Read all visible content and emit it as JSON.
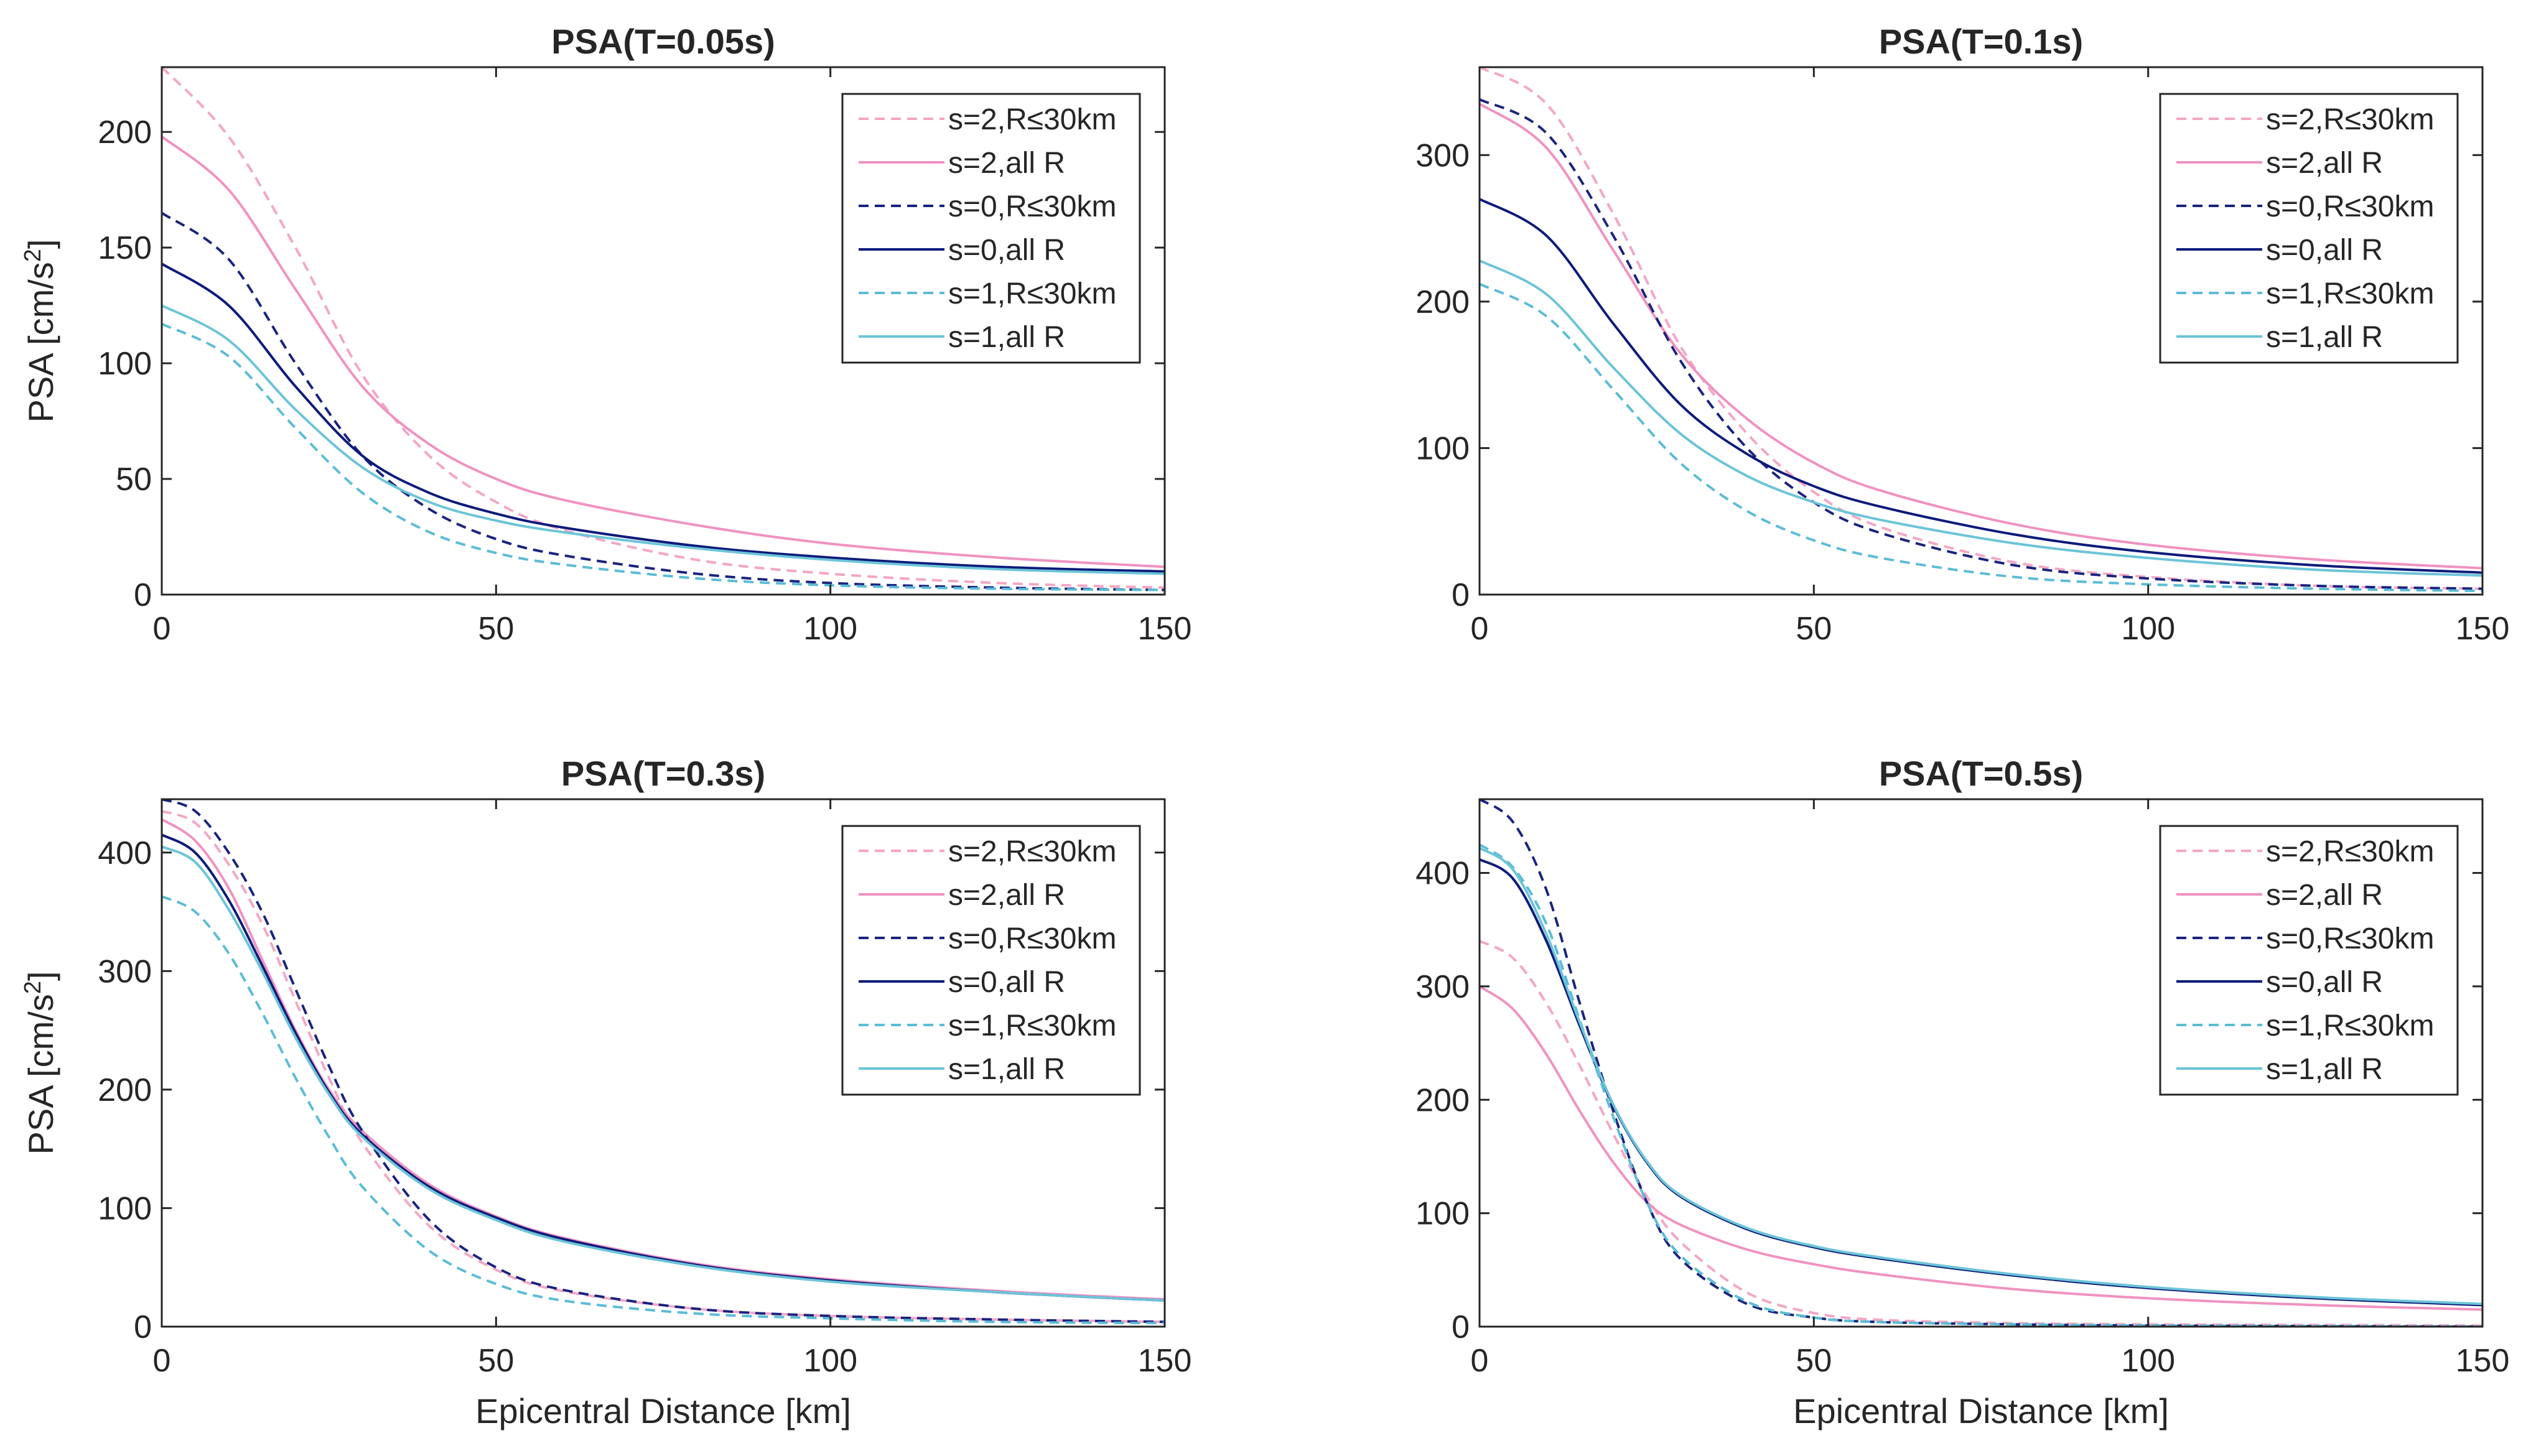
{
  "chart_data": [
    {
      "type": "line",
      "title": "PSA(T=0.05s)",
      "xlabel": "",
      "ylabel": "PSA [cm/s2]",
      "xlim": [
        0,
        150
      ],
      "ylim": [
        0,
        228
      ],
      "xticks": [
        0,
        50,
        100,
        150
      ],
      "yticks": [
        0,
        50,
        100,
        150,
        200
      ],
      "legend_position": "top-right",
      "series": [
        {
          "name": "s=2,R≤30km",
          "color": "#f4a6c5",
          "dashed": true,
          "x": [
            0,
            10,
            20,
            30,
            40,
            50,
            60,
            80,
            100,
            125,
            150
          ],
          "values": [
            228,
            198,
            150,
            95,
            60,
            40,
            28,
            15,
            9,
            5,
            3
          ]
        },
        {
          "name": "s=2,all R",
          "color": "#f092c0",
          "dashed": false,
          "x": [
            0,
            10,
            20,
            30,
            40,
            50,
            60,
            80,
            100,
            125,
            150
          ],
          "values": [
            198,
            175,
            132,
            90,
            65,
            50,
            41,
            30,
            22,
            16,
            12
          ]
        },
        {
          "name": "s=0,R≤30km",
          "color": "#1a237e",
          "dashed": true,
          "x": [
            0,
            10,
            20,
            30,
            40,
            50,
            60,
            80,
            100,
            125,
            150
          ],
          "values": [
            165,
            145,
            100,
            60,
            37,
            24,
            17,
            9,
            5,
            3,
            2
          ]
        },
        {
          "name": "s=0,all R",
          "color": "#0d1b7a",
          "dashed": false,
          "x": [
            0,
            10,
            20,
            30,
            40,
            50,
            60,
            80,
            100,
            125,
            150
          ],
          "values": [
            143,
            125,
            90,
            60,
            44,
            35,
            29,
            21,
            16,
            12,
            10
          ]
        },
        {
          "name": "s=1,R≤30km",
          "color": "#5bbcd6",
          "dashed": true,
          "x": [
            0,
            10,
            20,
            30,
            40,
            50,
            60,
            80,
            100,
            125,
            150
          ],
          "values": [
            117,
            103,
            72,
            44,
            27,
            18,
            13,
            7,
            4,
            2.5,
            2
          ]
        },
        {
          "name": "s=1,all R",
          "color": "#6cc4d8",
          "dashed": false,
          "x": [
            0,
            10,
            20,
            30,
            40,
            50,
            60,
            80,
            100,
            125,
            150
          ],
          "values": [
            125,
            110,
            80,
            55,
            40,
            32,
            27,
            20,
            15,
            11,
            9
          ]
        }
      ]
    },
    {
      "type": "line",
      "title": "PSA(T=0.1s)",
      "xlabel": "",
      "ylabel": "",
      "xlim": [
        0,
        150
      ],
      "ylim": [
        0,
        360
      ],
      "xticks": [
        0,
        50,
        100,
        150
      ],
      "yticks": [
        0,
        100,
        200,
        300
      ],
      "legend_position": "top-right",
      "series": [
        {
          "name": "s=2,R≤30km",
          "color": "#f4a6c5",
          "dashed": true,
          "x": [
            0,
            10,
            20,
            30,
            40,
            50,
            60,
            80,
            100,
            125,
            150
          ],
          "values": [
            360,
            335,
            260,
            170,
            110,
            70,
            46,
            22,
            12,
            6,
            4
          ]
        },
        {
          "name": "s=2,all R",
          "color": "#f092c0",
          "dashed": false,
          "x": [
            0,
            10,
            20,
            30,
            40,
            50,
            60,
            80,
            100,
            125,
            150
          ],
          "values": [
            335,
            305,
            235,
            165,
            120,
            90,
            71,
            48,
            34,
            24,
            18
          ]
        },
        {
          "name": "s=0,R≤30km",
          "color": "#1a237e",
          "dashed": true,
          "x": [
            0,
            10,
            20,
            30,
            40,
            50,
            60,
            80,
            100,
            125,
            150
          ],
          "values": [
            338,
            315,
            245,
            160,
            100,
            63,
            42,
            20,
            11,
            6,
            4
          ]
        },
        {
          "name": "s=0,all R",
          "color": "#0d1b7a",
          "dashed": false,
          "x": [
            0,
            10,
            20,
            30,
            40,
            50,
            60,
            80,
            100,
            125,
            150
          ],
          "values": [
            270,
            245,
            185,
            130,
            96,
            74,
            60,
            41,
            29,
            20,
            15
          ]
        },
        {
          "name": "s=1,R≤30km",
          "color": "#5bbcd6",
          "dashed": true,
          "x": [
            0,
            10,
            20,
            30,
            40,
            50,
            60,
            80,
            100,
            125,
            150
          ],
          "values": [
            212,
            190,
            140,
            90,
            57,
            37,
            25,
            12,
            7,
            4,
            2.5
          ]
        },
        {
          "name": "s=1,all R",
          "color": "#6cc4d8",
          "dashed": false,
          "x": [
            0,
            10,
            20,
            30,
            40,
            50,
            60,
            80,
            100,
            125,
            150
          ],
          "values": [
            228,
            205,
            155,
            110,
            81,
            63,
            51,
            35,
            25,
            17,
            13
          ]
        }
      ]
    },
    {
      "type": "line",
      "title": "PSA(T=0.3s)",
      "xlabel": "Epicentral Distance [km]",
      "ylabel": "PSA [cm/s2]",
      "xlim": [
        0,
        150
      ],
      "ylim": [
        0,
        445
      ],
      "xticks": [
        0,
        50,
        100,
        150
      ],
      "yticks": [
        0,
        100,
        200,
        300,
        400
      ],
      "legend_position": "top-right",
      "series": [
        {
          "name": "s=2,R≤30km",
          "color": "#f4a6c5",
          "dashed": true,
          "x": [
            0,
            5,
            10,
            15,
            20,
            25,
            30,
            40,
            50,
            60,
            80,
            100,
            125,
            150
          ],
          "values": [
            435,
            425,
            390,
            340,
            275,
            210,
            155,
            85,
            48,
            30,
            15,
            9,
            6,
            4
          ]
        },
        {
          "name": "s=2,all R",
          "color": "#f092c0",
          "dashed": false,
          "x": [
            0,
            5,
            10,
            15,
            20,
            25,
            30,
            40,
            50,
            60,
            80,
            100,
            125,
            150
          ],
          "values": [
            428,
            410,
            370,
            310,
            250,
            200,
            165,
            120,
            93,
            75,
            53,
            40,
            30,
            23
          ]
        },
        {
          "name": "s=0,R≤30km",
          "color": "#1a237e",
          "dashed": true,
          "x": [
            0,
            5,
            10,
            15,
            20,
            25,
            30,
            40,
            50,
            60,
            80,
            100,
            125,
            150
          ],
          "values": [
            445,
            435,
            400,
            350,
            285,
            220,
            165,
            90,
            50,
            31,
            15,
            9,
            6,
            4
          ]
        },
        {
          "name": "s=0,all R",
          "color": "#0d1b7a",
          "dashed": false,
          "x": [
            0,
            5,
            10,
            15,
            20,
            25,
            30,
            40,
            50,
            60,
            80,
            100,
            125,
            150
          ],
          "values": [
            415,
            400,
            360,
            305,
            248,
            198,
            162,
            118,
            92,
            74,
            52,
            39,
            29,
            22
          ]
        },
        {
          "name": "s=1,R≤30km",
          "color": "#5bbcd6",
          "dashed": true,
          "x": [
            0,
            5,
            10,
            15,
            20,
            25,
            30,
            40,
            50,
            60,
            80,
            100,
            125,
            150
          ],
          "values": [
            363,
            350,
            315,
            265,
            210,
            160,
            118,
            64,
            36,
            22,
            11,
            7,
            4,
            3
          ]
        },
        {
          "name": "s=1,all R",
          "color": "#6cc4d8",
          "dashed": false,
          "x": [
            0,
            5,
            10,
            15,
            20,
            25,
            30,
            40,
            50,
            60,
            80,
            100,
            125,
            150
          ],
          "values": [
            405,
            392,
            352,
            300,
            244,
            196,
            160,
            116,
            90,
            72,
            51,
            38,
            29,
            22
          ]
        }
      ]
    },
    {
      "type": "line",
      "title": "PSA(T=0.5s)",
      "xlabel": "Epicentral Distance [km]",
      "ylabel": "",
      "xlim": [
        0,
        150
      ],
      "ylim": [
        0,
        465
      ],
      "xticks": [
        0,
        50,
        100,
        150
      ],
      "yticks": [
        0,
        100,
        200,
        300,
        400
      ],
      "legend_position": "top-right",
      "series": [
        {
          "name": "s=2,R≤30km",
          "color": "#f4a6c5",
          "dashed": true,
          "x": [
            0,
            5,
            10,
            15,
            20,
            25,
            30,
            40,
            50,
            60,
            80,
            100,
            125,
            150
          ],
          "values": [
            340,
            325,
            285,
            230,
            170,
            115,
            75,
            30,
            12,
            6,
            3,
            2,
            1.5,
            1
          ]
        },
        {
          "name": "s=2,all R",
          "color": "#f092c0",
          "dashed": false,
          "x": [
            0,
            5,
            10,
            15,
            20,
            25,
            30,
            40,
            50,
            60,
            80,
            100,
            125,
            150
          ],
          "values": [
            300,
            280,
            240,
            190,
            145,
            110,
            90,
            68,
            55,
            46,
            33,
            25,
            19,
            15
          ]
        },
        {
          "name": "s=0,R≤30km",
          "color": "#1a237e",
          "dashed": true,
          "x": [
            0,
            5,
            10,
            15,
            20,
            25,
            30,
            40,
            50,
            60,
            80,
            100,
            125,
            150
          ],
          "values": [
            465,
            445,
            385,
            285,
            190,
            110,
            60,
            20,
            8,
            4,
            2,
            1,
            0.5,
            0
          ]
        },
        {
          "name": "s=0,all R",
          "color": "#0d1b7a",
          "dashed": false,
          "x": [
            0,
            5,
            10,
            15,
            20,
            25,
            30,
            40,
            50,
            60,
            80,
            100,
            125,
            150
          ],
          "values": [
            412,
            395,
            340,
            265,
            195,
            145,
            115,
            86,
            70,
            60,
            45,
            34,
            25,
            19
          ]
        },
        {
          "name": "s=1,R≤30km",
          "color": "#5bbcd6",
          "dashed": true,
          "x": [
            0,
            5,
            10,
            15,
            20,
            25,
            30,
            40,
            50,
            60,
            80,
            100,
            125,
            150
          ],
          "values": [
            425,
            405,
            355,
            270,
            185,
            110,
            63,
            22,
            8,
            4,
            2,
            1,
            0.5,
            0
          ]
        },
        {
          "name": "s=1,all R",
          "color": "#6cc4d8",
          "dashed": false,
          "x": [
            0,
            5,
            10,
            15,
            20,
            25,
            30,
            40,
            50,
            60,
            80,
            100,
            125,
            150
          ],
          "values": [
            422,
            403,
            346,
            268,
            196,
            146,
            116,
            87,
            71,
            61,
            46,
            35,
            26,
            20
          ]
        }
      ]
    }
  ]
}
